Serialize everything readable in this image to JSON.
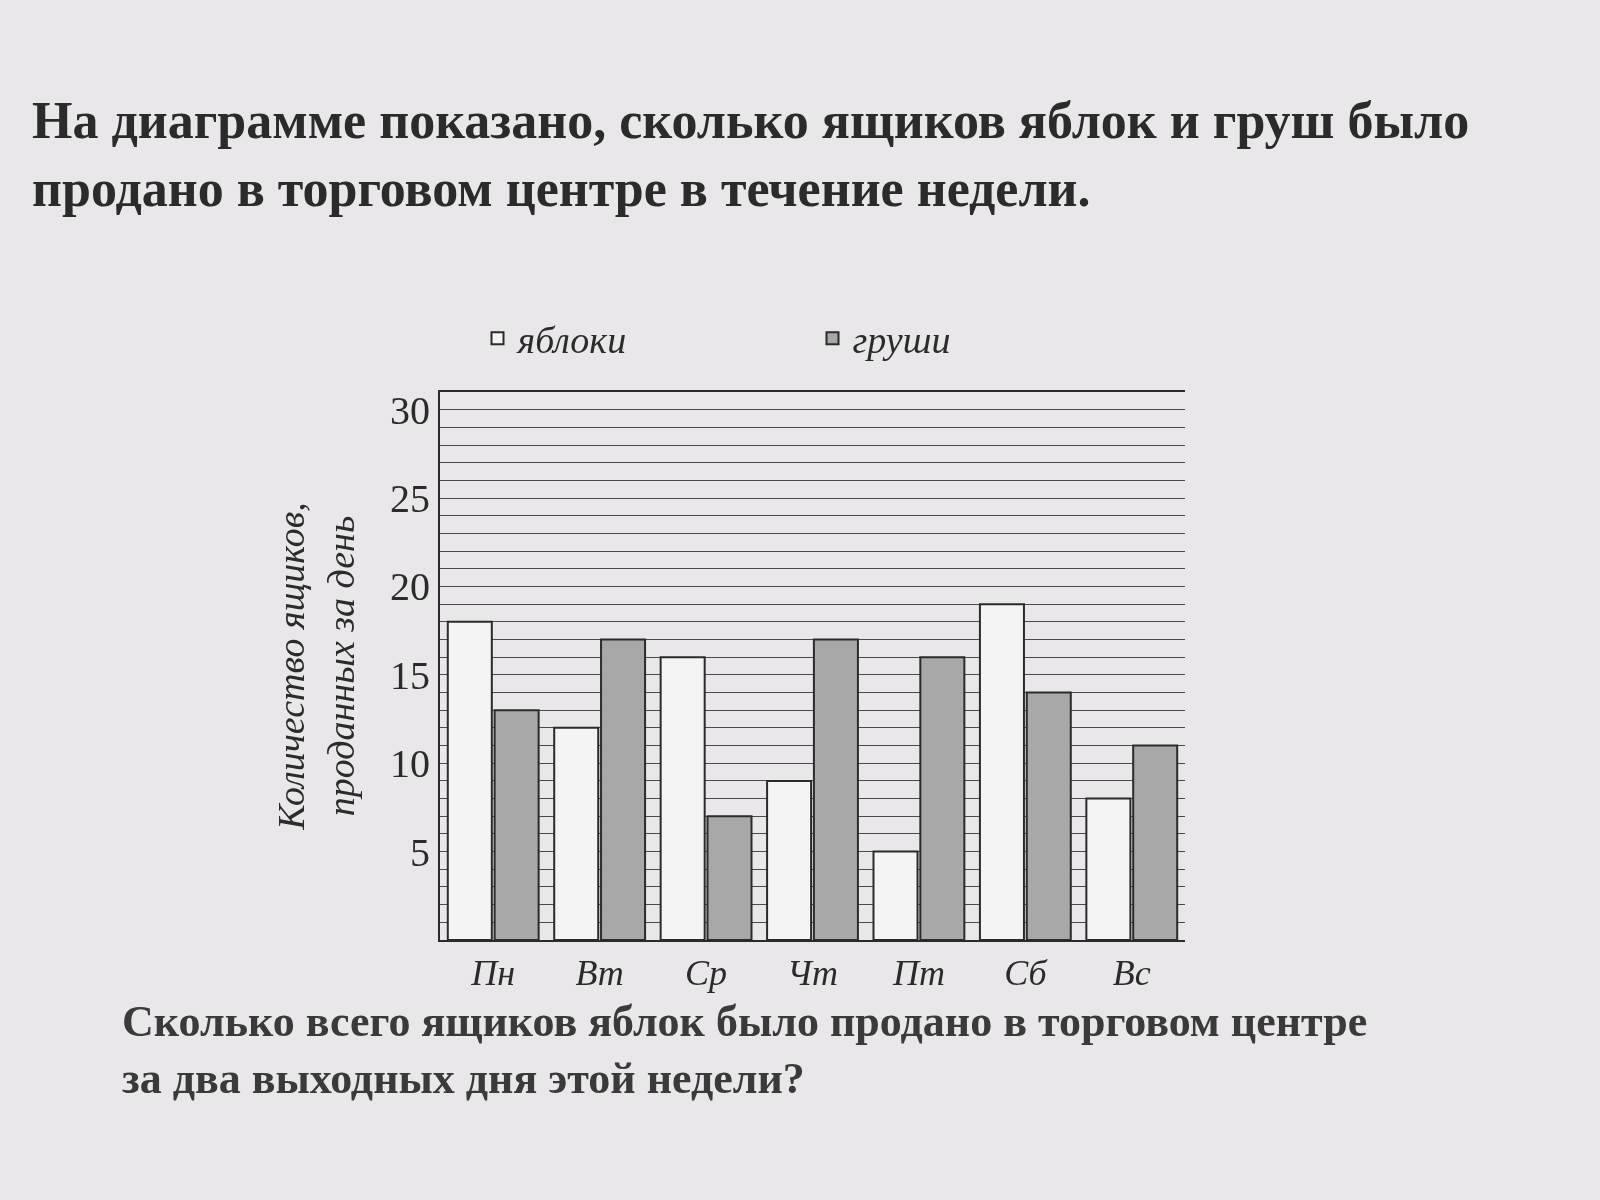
{
  "chart_data": {
    "type": "bar",
    "title": "На диаграмме показано, сколько ящиков яблок и груш было\nпродано в торговом центре в течение недели.",
    "ylabel": "Количество ящиков,\nпроданных за день",
    "annotations": [
      "Сколько всего ящиков яблок было продано в торговом центре\nза два выходных дня этой недели?"
    ],
    "categories": [
      "Пн",
      "Вт",
      "Ср",
      "Чт",
      "Пт",
      "Сб",
      "Вс"
    ],
    "series": [
      {
        "name": "яблоки",
        "color": "#f4f4f4",
        "values": [
          18,
          12,
          16,
          9,
          5,
          19,
          8
        ]
      },
      {
        "name": "груши",
        "color": "#a8a8a8",
        "values": [
          13,
          17,
          7,
          17,
          16,
          14,
          11
        ]
      }
    ],
    "ylim": [
      0,
      31
    ],
    "yticks": [
      {
        "value": 1,
        "label": null
      },
      {
        "value": 2,
        "label": null
      },
      {
        "value": 3,
        "label": null
      },
      {
        "value": 4,
        "label": null
      },
      5,
      {
        "value": 6,
        "label": null
      },
      {
        "value": 7,
        "label": null
      },
      {
        "value": 8,
        "label": null
      },
      {
        "value": 9,
        "label": null
      },
      10,
      {
        "value": 11,
        "label": null
      },
      {
        "value": 12,
        "label": null
      },
      {
        "value": 13,
        "label": null
      },
      {
        "value": 14,
        "label": null
      },
      15,
      {
        "value": 16,
        "label": null
      },
      {
        "value": 17,
        "label": null
      },
      {
        "value": 18,
        "label": null
      },
      {
        "value": 19,
        "label": null
      },
      20,
      {
        "value": 21,
        "label": null
      },
      {
        "value": 22,
        "label": null
      },
      {
        "value": 23,
        "label": null
      },
      {
        "value": 24,
        "label": null
      },
      25,
      {
        "value": 26,
        "label": null
      },
      {
        "value": 27,
        "label": null
      },
      {
        "value": 28,
        "label": null
      },
      {
        "value": 29,
        "label": null
      },
      30
    ],
    "grid": "y",
    "legend": "top"
  }
}
